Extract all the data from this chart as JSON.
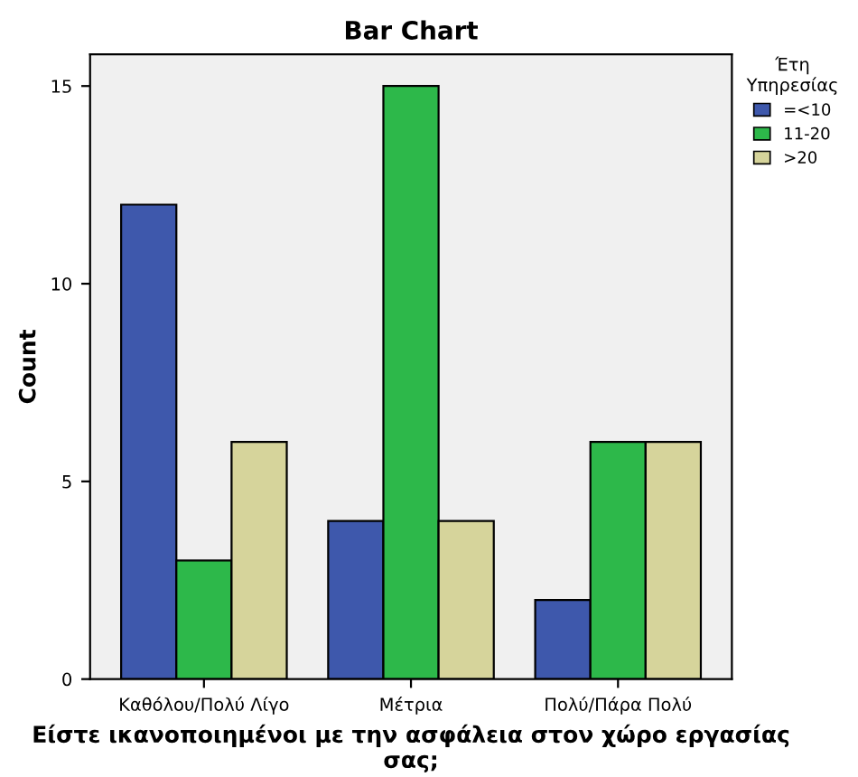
{
  "chart_data": {
    "type": "bar",
    "title": "Bar Chart",
    "xlabel": "Είστε ικανοποιημένοι με την ασφάλεια στον χώρο εργασίας σας;",
    "ylabel": "Count",
    "legend_title": "Έτη\nΥπηρεσίας",
    "categories": [
      "Καθόλου/Πολύ Λίγο",
      "Μέτρια",
      "Πολύ/Πάρα Πολύ"
    ],
    "series": [
      {
        "name": "=<10",
        "color": "#3e58ac",
        "values": [
          12,
          4,
          2
        ]
      },
      {
        "name": "11-20",
        "color": "#2db84a",
        "values": [
          3,
          15,
          6
        ]
      },
      {
        "name": ">20",
        "color": "#d6d49b",
        "values": [
          6,
          4,
          6
        ]
      }
    ],
    "ylim": [
      0,
      15.8
    ],
    "yticks": [
      0,
      5,
      10,
      15
    ],
    "grid": false,
    "legend": "right"
  }
}
